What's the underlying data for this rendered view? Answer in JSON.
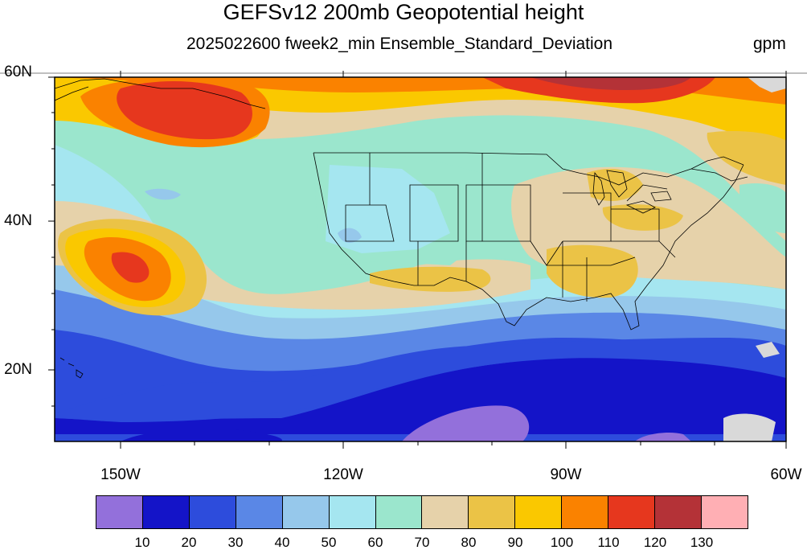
{
  "title": "GEFSv12 200mb Geopotential height",
  "subtitle": "2025022600 fweek2_min Ensemble_Standard_Deviation",
  "units": "gpm",
  "lat_labels": [
    "60N",
    "40N",
    "20N"
  ],
  "lon_labels": [
    "150W",
    "120W",
    "90W",
    "60W"
  ],
  "colorbar": {
    "colors": [
      "#9370db",
      "#1414c8",
      "#2d4cdc",
      "#5a87e6",
      "#96c8eb",
      "#a5e6f0",
      "#9be6cd",
      "#e6d2aa",
      "#ebc346",
      "#fac800",
      "#fa8200",
      "#e6371e",
      "#b43237",
      "#ffafb4"
    ],
    "labels": [
      "10",
      "20",
      "30",
      "40",
      "50",
      "60",
      "70",
      "80",
      "90",
      "100",
      "110",
      "120",
      "130"
    ]
  },
  "map": {
    "extent_lon": [
      -160,
      -61
    ],
    "extent_lat": [
      10,
      59.5
    ]
  }
}
